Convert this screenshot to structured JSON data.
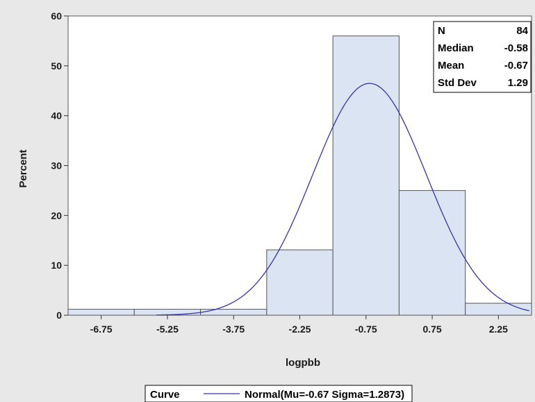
{
  "chart_data": {
    "type": "bar",
    "subtype": "histogram",
    "xlabel": "logpbb",
    "ylabel": "Percent",
    "ylim": [
      0,
      60
    ],
    "xlim": [
      -7.5,
      3.0
    ],
    "y_ticks": [
      0,
      10,
      20,
      30,
      40,
      50,
      60
    ],
    "x_ticks": [
      "-6.75",
      "-5.25",
      "-3.75",
      "-2.25",
      "-0.75",
      "0.75",
      "2.25"
    ],
    "x_tick_values": [
      -6.75,
      -5.25,
      -3.75,
      -2.25,
      -0.75,
      0.75,
      2.25
    ],
    "bin_width": 1.5,
    "bins": [
      {
        "center": -6.75,
        "value": 1.2
      },
      {
        "center": -5.25,
        "value": 1.2
      },
      {
        "center": -3.75,
        "value": 1.2
      },
      {
        "center": -2.25,
        "value": 13.1
      },
      {
        "center": -0.75,
        "value": 56.0
      },
      {
        "center": 0.75,
        "value": 25.0
      },
      {
        "center": 2.25,
        "value": 2.4
      }
    ],
    "curve": {
      "type": "normal",
      "mu": -0.67,
      "sigma": 1.2873,
      "label": "Normal(Mu=-0.67 Sigma=1.2873)"
    },
    "stats": [
      {
        "label": "N",
        "value": "84"
      },
      {
        "label": "Median",
        "value": "-0.58"
      },
      {
        "label": "Mean",
        "value": "-0.67"
      },
      {
        "label": "Std Dev",
        "value": "1.29"
      }
    ],
    "legend": {
      "title": "Curve",
      "entry": "Normal(Mu=-0.67 Sigma=1.2873)",
      "placement": "bottom"
    },
    "colors": {
      "bar_fill": "#dbe4f2",
      "bar_stroke": "#555555",
      "curve": "#3333aa",
      "background": "#e8e8e8",
      "plot": "#ffffff"
    },
    "grid": false
  }
}
